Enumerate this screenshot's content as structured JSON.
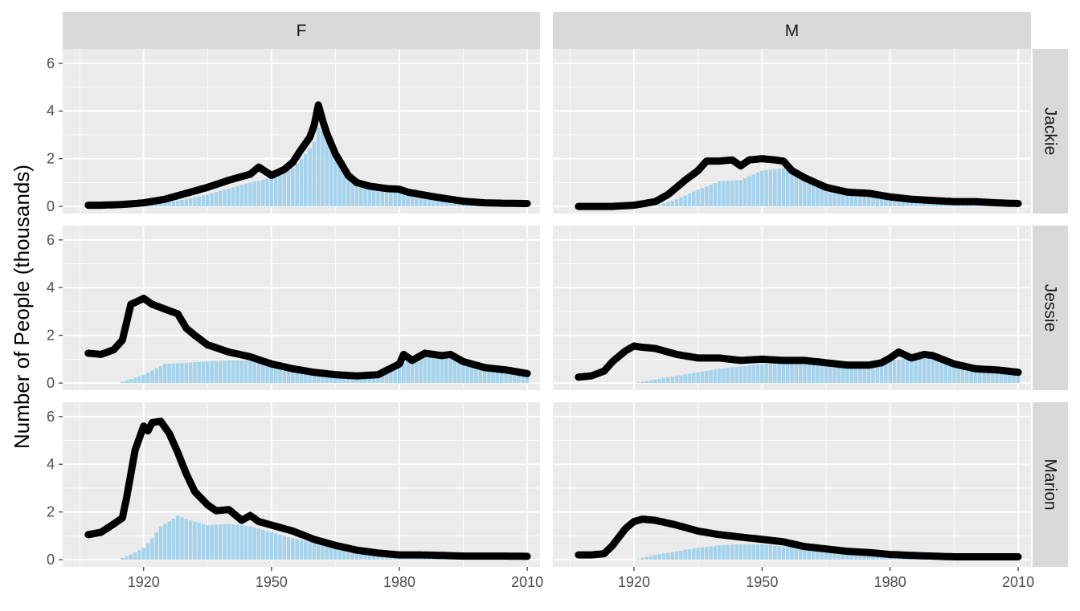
{
  "chart_data": {
    "type": "area",
    "ylabel": "Number of People (thousands)",
    "xlabel": "",
    "columns": [
      "F",
      "M"
    ],
    "rows": [
      "Jackie",
      "Jessie",
      "Marion"
    ],
    "xlim": [
      1901,
      2013
    ],
    "ylim": [
      -0.3,
      6.6
    ],
    "x_ticks": [
      1920,
      1950,
      1980,
      2010
    ],
    "y_ticks": [
      0,
      2,
      4,
      6
    ],
    "grid": true,
    "colors": {
      "line": "#000000",
      "bars": "#a6d3ec",
      "panel": "#ebebeb",
      "strip": "#d9d9d9",
      "grid": "#ffffff"
    },
    "panels": [
      {
        "column": "F",
        "row": "Jackie",
        "line_x": [
          1907,
          1910,
          1915,
          1920,
          1925,
          1930,
          1935,
          1940,
          1945,
          1947,
          1950,
          1953,
          1955,
          1957,
          1959,
          1960,
          1961,
          1962,
          1963,
          1965,
          1968,
          1970,
          1973,
          1975,
          1977,
          1980,
          1982,
          1985,
          1990,
          1995,
          2000,
          2005,
          2010
        ],
        "line_y": [
          0.05,
          0.05,
          0.08,
          0.15,
          0.3,
          0.55,
          0.8,
          1.1,
          1.35,
          1.65,
          1.3,
          1.55,
          1.85,
          2.4,
          2.9,
          3.4,
          4.25,
          3.6,
          3.05,
          2.2,
          1.3,
          1.0,
          0.85,
          0.8,
          0.75,
          0.72,
          0.6,
          0.5,
          0.35,
          0.22,
          0.15,
          0.13,
          0.12
        ],
        "bar_x": [
          1914,
          1920,
          1925,
          1930,
          1935,
          1940,
          1945,
          1950,
          1955,
          1958,
          1960,
          1961,
          1963,
          1965,
          1968,
          1970,
          1975,
          1980,
          1985,
          1990,
          2000,
          2010
        ],
        "bar_y": [
          0,
          0.05,
          0.15,
          0.3,
          0.5,
          0.75,
          1.0,
          1.2,
          1.6,
          2.2,
          2.7,
          3.3,
          3.0,
          2.1,
          1.3,
          1.0,
          0.8,
          0.7,
          0.5,
          0.3,
          0.15,
          0.1
        ]
      },
      {
        "column": "M",
        "row": "Jackie",
        "line_x": [
          1907,
          1915,
          1920,
          1925,
          1928,
          1930,
          1932,
          1935,
          1937,
          1940,
          1943,
          1945,
          1947,
          1950,
          1953,
          1955,
          1957,
          1960,
          1965,
          1970,
          1975,
          1980,
          1985,
          1990,
          1995,
          2000,
          2005,
          2010
        ],
        "line_y": [
          0.0,
          0.0,
          0.05,
          0.2,
          0.5,
          0.8,
          1.1,
          1.5,
          1.9,
          1.9,
          1.95,
          1.7,
          1.95,
          2.0,
          1.95,
          1.9,
          1.5,
          1.2,
          0.8,
          0.6,
          0.55,
          0.4,
          0.3,
          0.25,
          0.2,
          0.2,
          0.15,
          0.12
        ],
        "bar_x": [
          1925,
          1930,
          1935,
          1940,
          1945,
          1950,
          1955,
          1960,
          1965,
          1970,
          1975,
          1980,
          1985,
          1990,
          2000,
          2010
        ],
        "bar_y": [
          0,
          0.3,
          0.7,
          1.05,
          1.1,
          1.5,
          1.6,
          1.2,
          0.8,
          0.6,
          0.5,
          0.4,
          0.3,
          0.2,
          0.15,
          0.1
        ]
      },
      {
        "column": "F",
        "row": "Jessie",
        "line_x": [
          1907,
          1910,
          1913,
          1915,
          1917,
          1920,
          1922,
          1925,
          1928,
          1930,
          1932,
          1935,
          1940,
          1945,
          1950,
          1955,
          1960,
          1965,
          1970,
          1975,
          1980,
          1981,
          1983,
          1986,
          1990,
          1992,
          1995,
          2000,
          2005,
          2010
        ],
        "line_y": [
          1.25,
          1.2,
          1.4,
          1.8,
          3.3,
          3.55,
          3.3,
          3.1,
          2.9,
          2.3,
          2.0,
          1.6,
          1.3,
          1.1,
          0.8,
          0.6,
          0.45,
          0.35,
          0.3,
          0.35,
          0.8,
          1.2,
          0.95,
          1.25,
          1.15,
          1.2,
          0.9,
          0.65,
          0.55,
          0.4
        ],
        "bar_x": [
          1914,
          1920,
          1925,
          1930,
          1935,
          1940,
          1945,
          1950,
          1955,
          1960,
          1965,
          1970,
          1975,
          1980,
          1985,
          1990,
          2000,
          2010
        ],
        "bar_y": [
          0,
          0.35,
          0.8,
          0.85,
          0.9,
          0.95,
          0.95,
          0.85,
          0.7,
          0.5,
          0.35,
          0.3,
          0.35,
          0.8,
          1.15,
          1.1,
          0.65,
          0.4
        ]
      },
      {
        "column": "M",
        "row": "Jessie",
        "line_x": [
          1907,
          1910,
          1913,
          1915,
          1918,
          1920,
          1922,
          1925,
          1930,
          1935,
          1940,
          1945,
          1950,
          1955,
          1960,
          1965,
          1970,
          1975,
          1978,
          1980,
          1982,
          1985,
          1988,
          1990,
          1995,
          2000,
          2005,
          2010
        ],
        "line_y": [
          0.25,
          0.3,
          0.5,
          0.9,
          1.35,
          1.55,
          1.5,
          1.45,
          1.2,
          1.05,
          1.05,
          0.95,
          1.0,
          0.95,
          0.95,
          0.85,
          0.75,
          0.75,
          0.85,
          1.05,
          1.3,
          1.05,
          1.2,
          1.15,
          0.8,
          0.6,
          0.55,
          0.45
        ],
        "bar_x": [
          1920,
          1925,
          1930,
          1935,
          1940,
          1945,
          1950,
          1955,
          1960,
          1965,
          1970,
          1975,
          1980,
          1985,
          1990,
          1995,
          2000,
          2010
        ],
        "bar_y": [
          0,
          0.15,
          0.3,
          0.45,
          0.6,
          0.7,
          0.8,
          0.85,
          0.85,
          0.8,
          0.7,
          0.7,
          0.95,
          1.05,
          1.0,
          0.7,
          0.55,
          0.4
        ]
      },
      {
        "column": "F",
        "row": "Marion",
        "line_x": [
          1907,
          1910,
          1913,
          1915,
          1916,
          1918,
          1920,
          1921,
          1922,
          1924,
          1926,
          1928,
          1930,
          1932,
          1935,
          1937,
          1940,
          1943,
          1945,
          1947,
          1950,
          1955,
          1960,
          1965,
          1970,
          1975,
          1980,
          1985,
          1990,
          1995,
          2000,
          2005,
          2010
        ],
        "line_y": [
          1.05,
          1.15,
          1.5,
          1.75,
          2.6,
          4.6,
          5.6,
          5.4,
          5.75,
          5.8,
          5.3,
          4.5,
          3.6,
          2.85,
          2.3,
          2.05,
          2.1,
          1.65,
          1.85,
          1.6,
          1.45,
          1.2,
          0.85,
          0.6,
          0.4,
          0.28,
          0.2,
          0.2,
          0.18,
          0.15,
          0.15,
          0.15,
          0.14
        ],
        "bar_x": [
          1914,
          1918,
          1920,
          1922,
          1924,
          1926,
          1928,
          1930,
          1935,
          1940,
          1945,
          1950,
          1955,
          1960,
          1965,
          1970,
          1975,
          1980,
          1990,
          2000,
          2010
        ],
        "bar_y": [
          0,
          0.3,
          0.5,
          0.9,
          1.4,
          1.6,
          1.85,
          1.7,
          1.45,
          1.5,
          1.4,
          1.15,
          0.9,
          0.7,
          0.5,
          0.35,
          0.22,
          0.15,
          0.1,
          0.08,
          0.06
        ]
      },
      {
        "column": "M",
        "row": "Marion",
        "line_x": [
          1907,
          1910,
          1913,
          1915,
          1918,
          1920,
          1922,
          1925,
          1930,
          1935,
          1940,
          1945,
          1950,
          1955,
          1960,
          1965,
          1970,
          1975,
          1980,
          1985,
          1990,
          1995,
          2000,
          2005,
          2010
        ],
        "line_y": [
          0.2,
          0.2,
          0.25,
          0.6,
          1.3,
          1.6,
          1.7,
          1.65,
          1.45,
          1.2,
          1.05,
          0.95,
          0.85,
          0.75,
          0.55,
          0.45,
          0.35,
          0.3,
          0.22,
          0.18,
          0.15,
          0.12,
          0.12,
          0.12,
          0.12
        ],
        "bar_x": [
          1920,
          1925,
          1930,
          1935,
          1940,
          1945,
          1950,
          1955,
          1960,
          1965,
          1970,
          1975,
          1980,
          1990,
          2000,
          2010
        ],
        "bar_y": [
          0,
          0.2,
          0.35,
          0.5,
          0.6,
          0.65,
          0.65,
          0.55,
          0.45,
          0.35,
          0.28,
          0.22,
          0.15,
          0.1,
          0.08,
          0.06
        ]
      }
    ]
  }
}
